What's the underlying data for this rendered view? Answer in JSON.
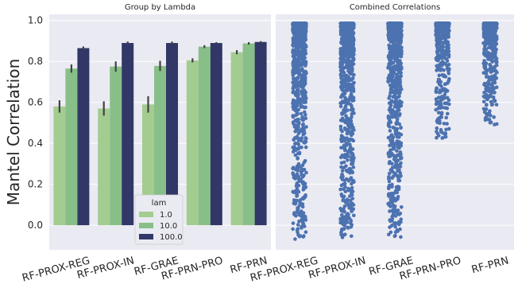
{
  "chart_data": [
    {
      "type": "bar",
      "title": "Group by Lambda",
      "xlabel": "",
      "ylabel": "Mantel Correlation",
      "ylim": [
        -0.12,
        1.03
      ],
      "yticks": [
        "0.0",
        "0.2",
        "0.4",
        "0.6",
        "0.8",
        "1.0"
      ],
      "grid": true,
      "legend_placement": "lower-center",
      "legend_title": "lam",
      "categories": [
        "RF-PROX-REG",
        "RF-PROX-IN",
        "RF-GRAE",
        "RF-PRN-PRO",
        "RF-PRN"
      ],
      "series": [
        {
          "name": "1.0",
          "color": "#a3cc91",
          "values": [
            0.58,
            0.57,
            0.59,
            0.805,
            0.845
          ],
          "err": [
            0.03,
            0.035,
            0.04,
            0.01,
            0.01
          ]
        },
        {
          "name": "10.0",
          "color": "#88bf88",
          "values": [
            0.765,
            0.775,
            0.778,
            0.872,
            0.888
          ],
          "err": [
            0.02,
            0.025,
            0.025,
            0.007,
            0.006
          ]
        },
        {
          "name": "100.0",
          "color": "#313868",
          "values": [
            0.865,
            0.89,
            0.89,
            0.89,
            0.895
          ],
          "err": [
            0.008,
            0.007,
            0.007,
            0.004,
            0.004
          ]
        }
      ]
    },
    {
      "type": "scatter",
      "title": "Combined Correlations",
      "ylim": [
        -0.12,
        1.03
      ],
      "grid": true,
      "color": "#4c72b0",
      "categories": [
        "RF-PROX-REG",
        "RF-PROX-IN",
        "RF-GRAE",
        "RF-PRN-PRO",
        "RF-PRN"
      ],
      "ranges": [
        {
          "min": -0.07,
          "max": 0.985
        },
        {
          "min": -0.06,
          "max": 0.985
        },
        {
          "min": -0.06,
          "max": 0.985
        },
        {
          "min": 0.4,
          "max": 0.985
        },
        {
          "min": 0.49,
          "max": 0.985
        }
      ]
    }
  ]
}
